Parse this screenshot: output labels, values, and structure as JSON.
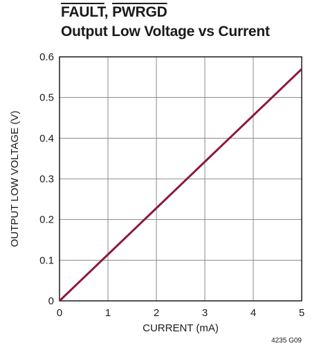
{
  "title": {
    "signal_a": "FAULT",
    "separator": ", ",
    "signal_b": "PWRGD",
    "line2": "Output Low Voltage vs Current"
  },
  "figure_note": "4235 G09",
  "colors": {
    "line": "#8b1a3c",
    "grid": "#888888",
    "frame": "#1a1a1a"
  },
  "chart_data": {
    "type": "line",
    "title": "FAULT, PWRGD Output Low Voltage vs Current",
    "xlabel": "CURRENT (mA)",
    "ylabel": "OUTPUT LOW VOLTAGE (V)",
    "xlim": [
      0,
      5
    ],
    "ylim": [
      0,
      0.6
    ],
    "xticks": [
      0,
      1,
      2,
      3,
      4,
      5
    ],
    "yticks": [
      0,
      0.1,
      0.2,
      0.3,
      0.4,
      0.5,
      0.6
    ],
    "xtick_labels": [
      "0",
      "1",
      "2",
      "3",
      "4",
      "5"
    ],
    "ytick_labels": [
      "0",
      "0.1",
      "0.2",
      "0.3",
      "0.4",
      "0.5",
      "0.6"
    ],
    "grid": true,
    "series": [
      {
        "x": [
          0,
          0.5,
          1,
          1.5,
          2,
          2.5,
          3,
          3.5,
          4,
          4.5,
          5
        ],
        "values": [
          0,
          0.057,
          0.114,
          0.171,
          0.228,
          0.285,
          0.342,
          0.399,
          0.456,
          0.513,
          0.57
        ]
      }
    ]
  }
}
